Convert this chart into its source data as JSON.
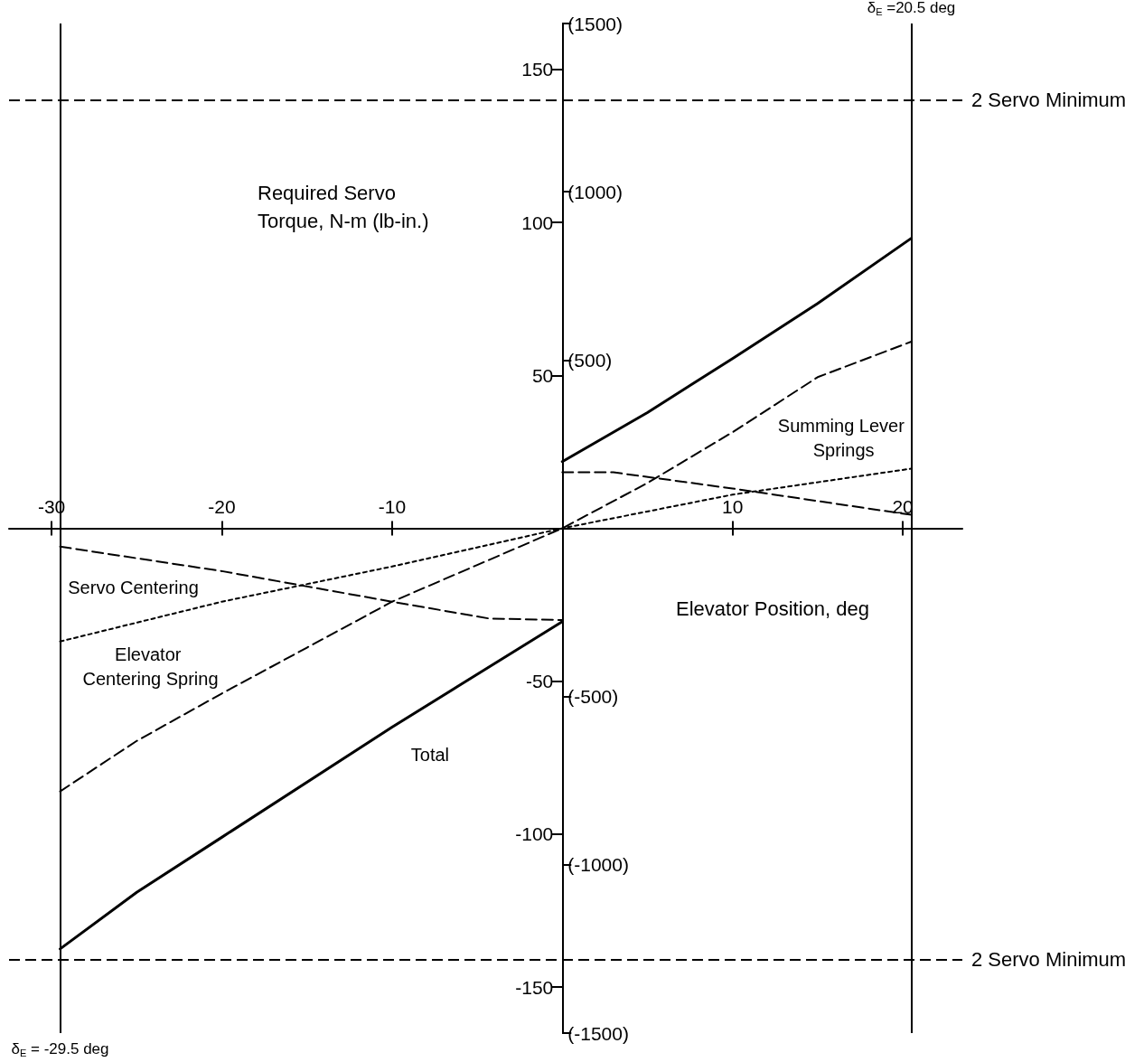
{
  "chart_data": {
    "type": "line",
    "xlabel": "Elevator Position, deg",
    "ylabel": "Required Servo Torque, N-m (lb-in.)",
    "xlim": [
      -32.5,
      23.5
    ],
    "xticks": [
      -30,
      -20,
      -10,
      10,
      20
    ],
    "ylim": [
      -165,
      165
    ],
    "yticks": [
      -150,
      -100,
      -50,
      50,
      100,
      150
    ],
    "y2lim": [
      -1500,
      1500
    ],
    "y2ticks": [
      {
        "value": -1500,
        "label": "(-1500)"
      },
      {
        "value": -1000,
        "label": "(-1000)"
      },
      {
        "value": -500,
        "label": "(-500)"
      },
      {
        "value": 500,
        "label": "(500)"
      },
      {
        "value": 1000,
        "label": "(1000)"
      },
      {
        "value": 1500,
        "label": "(1500)"
      }
    ],
    "marker": "none",
    "series": [
      {
        "name": "Total",
        "color": "#000000",
        "line_style": "solid",
        "x": [
          -29.5,
          -25,
          -20,
          -10,
          0
        ],
        "values": [
          -137.5,
          -119,
          -101,
          -65,
          -30.5
        ]
      },
      {
        "color": "#000000",
        "line_style": "solid",
        "x": [
          0,
          5,
          10,
          15,
          20.5
        ],
        "values": [
          21.8,
          37.8,
          55.5,
          73.5,
          94.8
        ]
      },
      {
        "name": "Summing Lever Springs",
        "color": "#000000",
        "line_style": "dashed",
        "x": [
          -29.5,
          -25,
          -20,
          -15,
          -10,
          -5,
          0,
          5,
          10,
          15,
          20.5
        ],
        "values": [
          -86,
          -69.5,
          -54,
          -39,
          -24,
          -12,
          0,
          14.8,
          31.4,
          49.4,
          61
        ]
      },
      {
        "name": "Elevator Centering Spring",
        "color": "#000000",
        "line_style": "dotted",
        "x": [
          -29.5,
          -20,
          -10,
          0,
          10,
          20.5
        ],
        "values": [
          -37,
          -24,
          -12.5,
          0,
          11,
          19.5
        ]
      },
      {
        "name": "Servo Centering",
        "color": "#000000",
        "line_style": "dashed",
        "x": [
          -29.5,
          -20,
          -10,
          -4.3,
          0
        ],
        "values": [
          -6,
          -14,
          -24,
          -29.5,
          -30
        ]
      },
      {
        "color": "#000000",
        "line_style": "dashed",
        "x": [
          0,
          3,
          10,
          20.5
        ],
        "values": [
          18.3,
          18.3,
          13,
          4.4
        ]
      }
    ],
    "ref_lines": [
      {
        "axis": "y",
        "value": 140,
        "label": "2 Servo Minimum",
        "line_style": "dashed"
      },
      {
        "axis": "y",
        "value": -141,
        "label": "2 Servo Minimum",
        "line_style": "dashed"
      },
      {
        "axis": "x",
        "value": -29.5,
        "label": "δ$_{E}$ = -29.5 deg",
        "line_style": "solid"
      },
      {
        "axis": "x",
        "value": 20.5,
        "label": "δ$_{E}$ =20.5 deg",
        "line_style": "solid"
      }
    ]
  }
}
